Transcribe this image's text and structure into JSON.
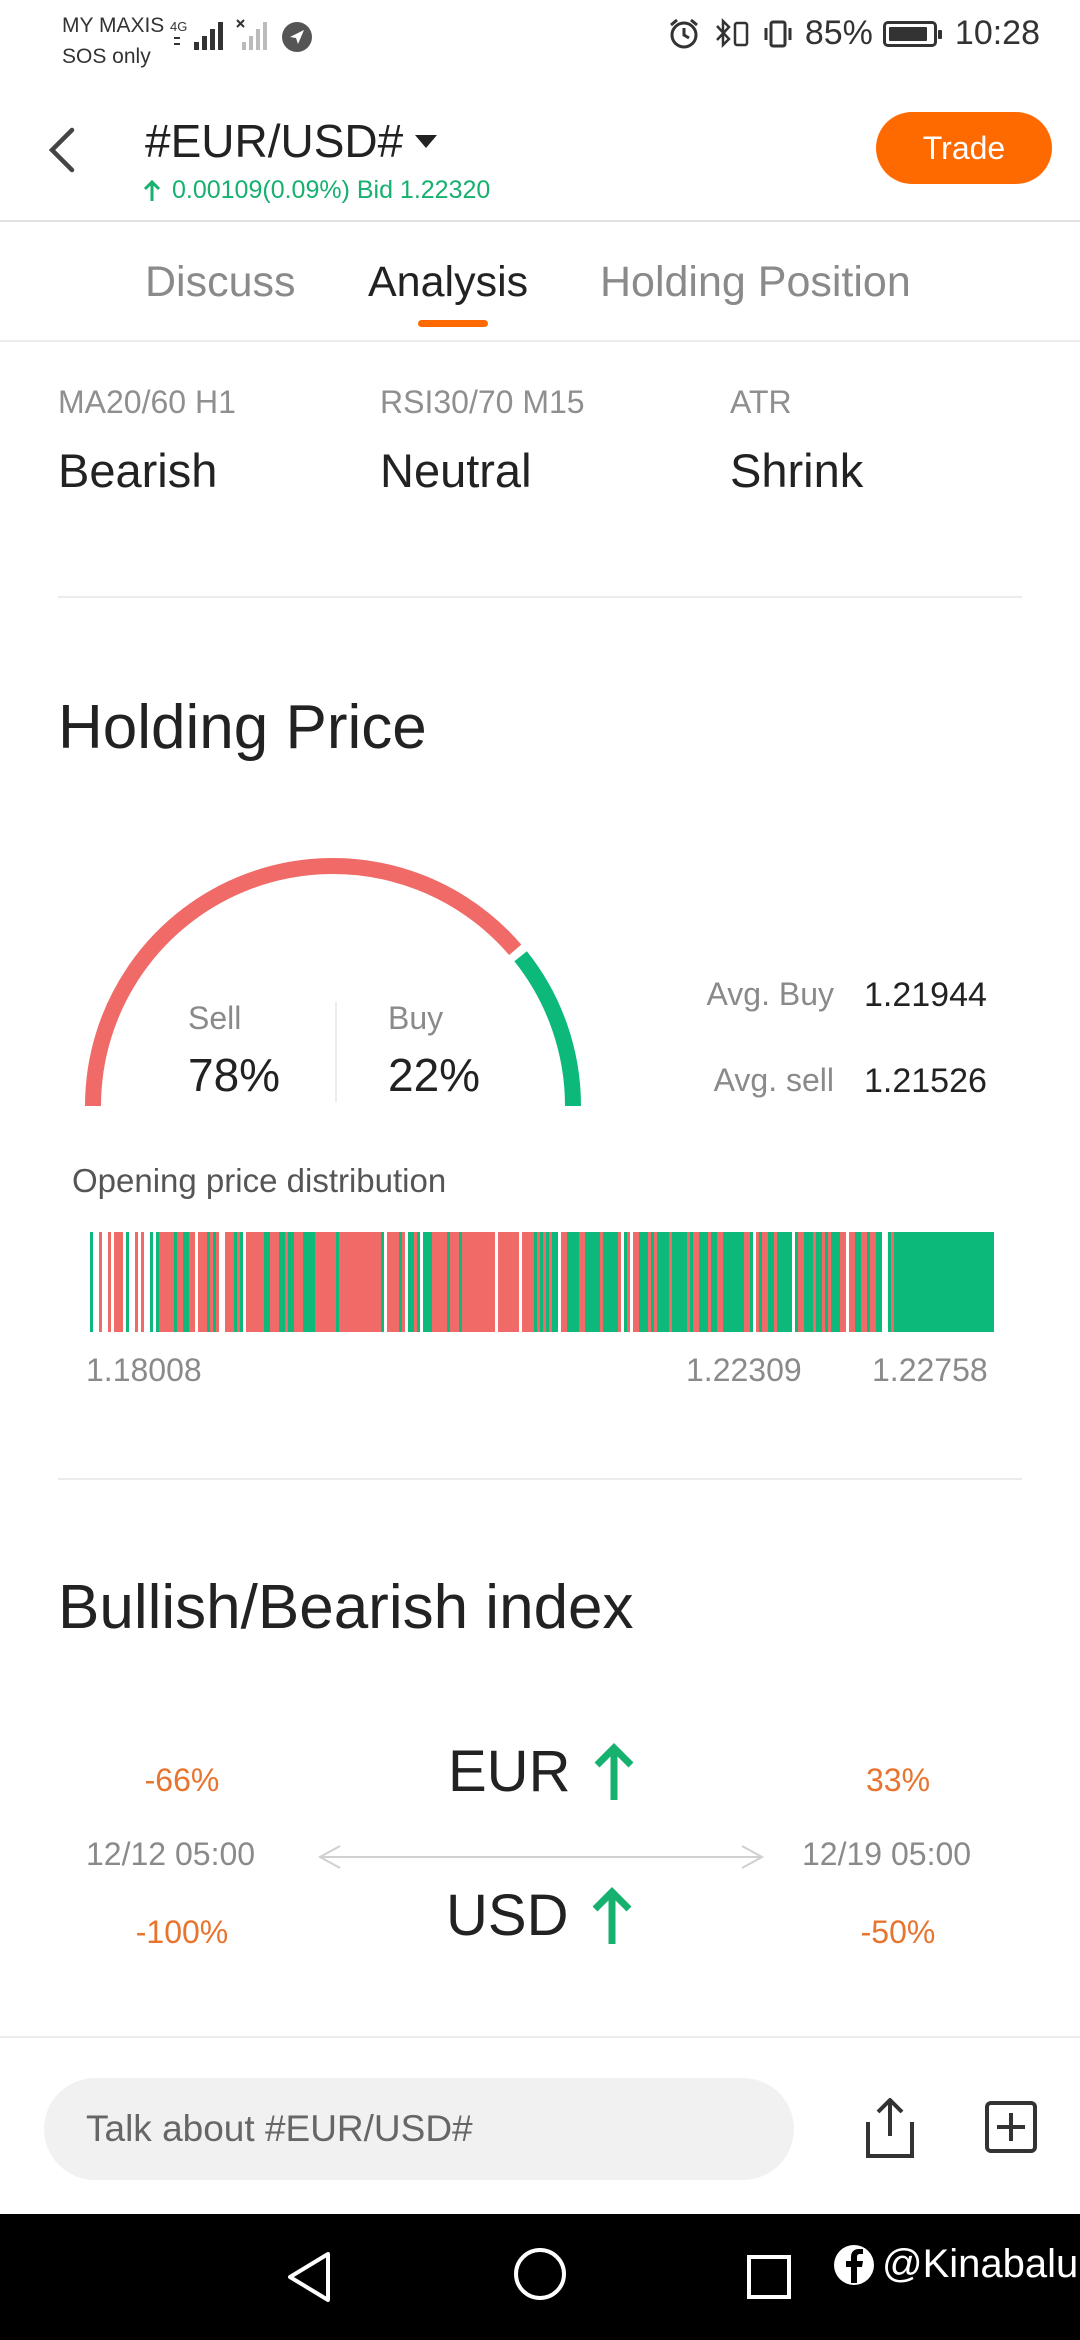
{
  "status_bar": {
    "carrier_line1": "MY MAXIS",
    "carrier_line2": "SOS only",
    "network": "4G",
    "battery": "85%",
    "time": "10:28"
  },
  "header": {
    "symbol": "#EUR/USD#",
    "quote": "0.00109(0.09%) Bid 1.22320",
    "trade_label": "Trade",
    "accent_color": "#ff6a00",
    "up_color": "#16b06f"
  },
  "tabs": [
    {
      "label": "Discuss",
      "active": false
    },
    {
      "label": "Analysis",
      "active": true
    },
    {
      "label": "Holding Position",
      "active": false
    }
  ],
  "indicators": [
    {
      "label": "MA20/60 H1",
      "value": "Bearish"
    },
    {
      "label": "RSI30/70 M15",
      "value": "Neutral"
    },
    {
      "label": "ATR",
      "value": "Shrink"
    }
  ],
  "holding_price": {
    "title": "Holding Price",
    "sell_label": "Sell",
    "sell_pct": "78%",
    "sell_fraction": 0.78,
    "buy_label": "Buy",
    "buy_pct": "22%",
    "buy_fraction": 0.22,
    "sell_color": "#f06a68",
    "buy_color": "#0db97a",
    "avg_buy_label": "Avg. Buy",
    "avg_buy_value": "1.21944",
    "avg_sell_label": "Avg. sell",
    "avg_sell_value": "1.21526",
    "distribution_label": "Opening price distribution",
    "ticks": [
      "1.18008",
      "1.22309",
      "1.22758"
    ]
  },
  "bullish_bearish": {
    "title": "Bullish/Bearish index",
    "base": "EUR",
    "quote": "USD",
    "base_left_pct": "-66%",
    "base_right_pct": "33%",
    "quote_left_pct": "-100%",
    "quote_right_pct": "-50%",
    "left_date": "12/12 05:00",
    "right_date": "12/19 05:00"
  },
  "bottom": {
    "talk_placeholder": "Talk about #EUR/USD#"
  },
  "watermark": "@Kinabalu"
}
